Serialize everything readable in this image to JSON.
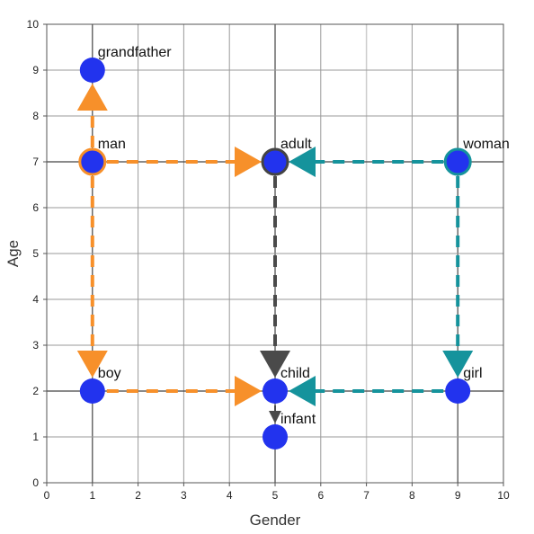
{
  "chart_data": {
    "type": "scatter",
    "title": "",
    "xlabel": "Gender",
    "ylabel": "Age",
    "xlim": [
      0,
      10
    ],
    "ylim": [
      0,
      10
    ],
    "xticks": [
      0,
      1,
      2,
      3,
      4,
      5,
      6,
      7,
      8,
      9,
      10
    ],
    "yticks": [
      0,
      1,
      2,
      3,
      4,
      5,
      6,
      7,
      8,
      9,
      10
    ],
    "grid": true,
    "points": [
      {
        "label": "grandfather",
        "x": 1,
        "y": 9,
        "outline": "none"
      },
      {
        "label": "man",
        "x": 1,
        "y": 7,
        "outline": "#f7902a"
      },
      {
        "label": "adult",
        "x": 5,
        "y": 7,
        "outline": "#444444"
      },
      {
        "label": "woman",
        "x": 9,
        "y": 7,
        "outline": "#15939c"
      },
      {
        "label": "boy",
        "x": 1,
        "y": 2,
        "outline": "none"
      },
      {
        "label": "child",
        "x": 5,
        "y": 2,
        "outline": "none"
      },
      {
        "label": "girl",
        "x": 9,
        "y": 2,
        "outline": "none"
      },
      {
        "label": "infant",
        "x": 5,
        "y": 1,
        "outline": "none"
      }
    ],
    "arrows": [
      {
        "from": [
          1,
          7
        ],
        "to": [
          1,
          9
        ],
        "color": "#f7902a",
        "style": "dashed"
      },
      {
        "from": [
          1,
          7
        ],
        "to": [
          5,
          7
        ],
        "color": "#f7902a",
        "style": "dashed"
      },
      {
        "from": [
          1,
          7
        ],
        "to": [
          1,
          2
        ],
        "color": "#f7902a",
        "style": "dashed"
      },
      {
        "from": [
          1,
          2
        ],
        "to": [
          5,
          2
        ],
        "color": "#f7902a",
        "style": "dashed"
      },
      {
        "from": [
          9,
          7
        ],
        "to": [
          5,
          7
        ],
        "color": "#15939c",
        "style": "dashed"
      },
      {
        "from": [
          9,
          7
        ],
        "to": [
          9,
          2
        ],
        "color": "#15939c",
        "style": "dashed"
      },
      {
        "from": [
          9,
          2
        ],
        "to": [
          5,
          2
        ],
        "color": "#15939c",
        "style": "dashed"
      },
      {
        "from": [
          5,
          7
        ],
        "to": [
          5,
          2
        ],
        "color": "#4a4a4a",
        "style": "dashed"
      },
      {
        "from": [
          5,
          2
        ],
        "to": [
          5,
          1
        ],
        "color": "#4a4a4a",
        "style": "solid"
      }
    ],
    "colors": {
      "point_fill": "#2233ee",
      "grid_major": "#444444",
      "grid_minor": "#9a9a9a",
      "highlight_grid": "#cccccc"
    }
  }
}
